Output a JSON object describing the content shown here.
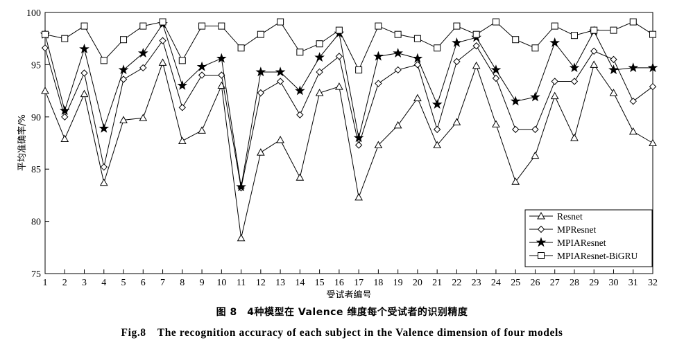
{
  "chart_data": {
    "type": "line",
    "xlabel": "受试者编号",
    "ylabel": "平均准确率/%",
    "xlim": [
      1,
      32
    ],
    "ylim": [
      75,
      100
    ],
    "yticks": [
      75,
      80,
      85,
      90,
      95,
      100
    ],
    "x": [
      1,
      2,
      3,
      4,
      5,
      6,
      7,
      8,
      9,
      10,
      11,
      12,
      13,
      14,
      15,
      16,
      17,
      18,
      19,
      20,
      21,
      22,
      23,
      24,
      25,
      26,
      27,
      28,
      29,
      30,
      31,
      32
    ],
    "grid": false,
    "legend_position": "bottom-right",
    "series": [
      {
        "name": "Resnet",
        "marker": "triangle",
        "values": [
          92.5,
          87.9,
          92.2,
          83.7,
          89.7,
          89.9,
          95.2,
          87.7,
          88.7,
          93.0,
          78.4,
          86.6,
          87.8,
          84.2,
          92.3,
          92.9,
          82.3,
          87.3,
          89.2,
          91.8,
          87.3,
          89.5,
          94.9,
          89.3,
          83.8,
          86.3,
          92.0,
          88.0,
          95.0,
          92.3,
          88.6,
          87.5
        ]
      },
      {
        "name": "MPResnet",
        "marker": "diamond",
        "values": [
          96.6,
          90.0,
          94.2,
          85.2,
          93.6,
          94.7,
          97.3,
          90.9,
          94.0,
          94.0,
          83.2,
          92.3,
          93.4,
          90.2,
          94.3,
          95.8,
          87.3,
          93.2,
          94.5,
          95.0,
          88.8,
          95.3,
          96.8,
          93.7,
          88.8,
          88.8,
          93.4,
          93.4,
          96.3,
          95.5,
          91.5,
          92.9
        ]
      },
      {
        "name": "MPIAResnet",
        "marker": "star",
        "values": [
          97.9,
          90.6,
          96.5,
          88.9,
          94.5,
          96.1,
          98.9,
          93.0,
          94.8,
          95.6,
          83.3,
          94.3,
          94.3,
          92.5,
          95.7,
          98.0,
          88.0,
          95.8,
          96.1,
          95.6,
          91.2,
          97.1,
          97.6,
          94.5,
          91.5,
          91.9,
          97.1,
          94.7,
          98.2,
          94.5,
          94.7,
          94.7
        ]
      },
      {
        "name": "MPIAResnet-BiGRU",
        "marker": "square",
        "values": [
          97.9,
          97.5,
          98.7,
          95.4,
          97.4,
          98.7,
          99.1,
          95.4,
          98.7,
          98.7,
          96.6,
          97.9,
          99.1,
          96.2,
          97.0,
          98.3,
          94.5,
          98.7,
          97.9,
          97.5,
          96.6,
          98.7,
          97.9,
          99.1,
          97.4,
          96.6,
          98.7,
          97.8,
          98.3,
          98.3,
          99.1,
          97.9
        ]
      }
    ]
  },
  "caption_cn": "图 8　4种模型在 Valence 维度每个受试者的识别精度",
  "caption_en": "Fig.8　The recognition accuracy of each subject in the Valence dimension of four models"
}
